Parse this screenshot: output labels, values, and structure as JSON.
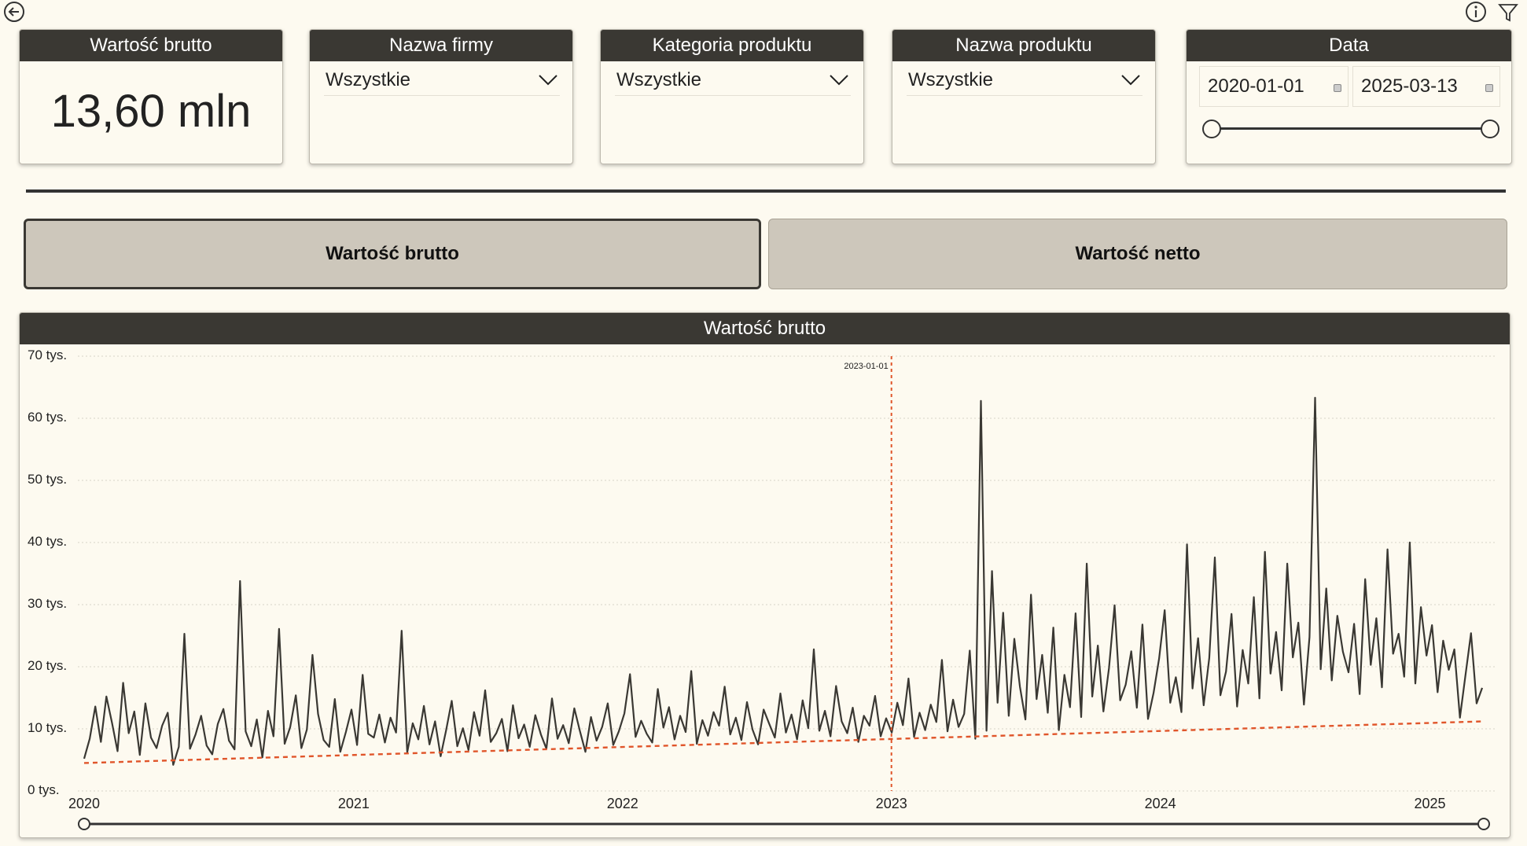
{
  "kpi": {
    "title": "Wartość brutto",
    "value": "13,60 mln"
  },
  "filters": [
    {
      "title": "Nazwa firmy",
      "value": "Wszystkie"
    },
    {
      "title": "Kategoria produktu",
      "value": "Wszystkie"
    },
    {
      "title": "Nazwa produktu",
      "value": "Wszystkie"
    }
  ],
  "date_filter": {
    "title": "Data",
    "start": "2020-01-01",
    "end": "2025-03-13"
  },
  "toggles": {
    "brutto_label": "Wartość brutto",
    "netto_label": "Wartość netto",
    "active": "brutto"
  },
  "icons": {
    "back": "back-arrow-icon",
    "info": "info-icon",
    "filter": "filter-icon"
  },
  "colors": {
    "header_bg": "#3a3833",
    "page_bg": "#fdfaf0",
    "line": "#3a3833",
    "trend": "#e0552a",
    "button_bg": "#cdc7bb"
  },
  "chart_data": {
    "type": "line",
    "title": "Wartość brutto",
    "x_ticks": [
      "2020",
      "2021",
      "2022",
      "2023",
      "2024",
      "2025"
    ],
    "y_ticks": [
      "0 tys.",
      "10 tys.",
      "20 tys.",
      "30 tys.",
      "40 tys.",
      "50 tys.",
      "60 tys.",
      "70 tys."
    ],
    "xlim": [
      "2020-01-01",
      "2025-03-13"
    ],
    "ylim": [
      0,
      70000
    ],
    "grid": true,
    "reference_line": {
      "label": "2023-01-01",
      "x": "2023-01-01",
      "color": "#e0552a"
    },
    "trend_line": {
      "start": 4500,
      "end": 11200,
      "color": "#e0552a"
    },
    "series": [
      {
        "values": [
          5200,
          8400,
          13600,
          7900,
          15200,
          11000,
          6400,
          17400,
          9300,
          12800,
          5800,
          14100,
          8600,
          6900,
          10500,
          12600,
          4200,
          7100,
          25300,
          6800,
          9100,
          12100,
          7300,
          5900,
          10800,
          13200,
          8100,
          6700,
          33800,
          9600,
          7200,
          11500,
          5400,
          12900,
          8800,
          26100,
          7600,
          10300,
          15400,
          6900,
          9900,
          21900,
          12400,
          8200,
          7100,
          14800,
          6300,
          9500,
          13100,
          7400,
          18700,
          9200,
          8600,
          12300,
          7800,
          11800,
          9400,
          25800,
          6200,
          10900,
          8300,
          13700,
          7500,
          11200,
          5600,
          9800,
          14500,
          7200,
          10100,
          6600,
          12700,
          8900,
          16200,
          7900,
          9300,
          11600,
          6400,
          13800,
          8500,
          10700,
          7100,
          12200,
          9100,
          6800,
          14900,
          8400,
          10600,
          7700,
          13300,
          9700,
          6300,
          11900,
          8100,
          10300,
          14100,
          7400,
          9600,
          12500,
          18800,
          8700,
          11300,
          9200,
          7800,
          16400,
          10200,
          13500,
          8300,
          12100,
          9500,
          19300,
          7600,
          11400,
          8900,
          12700,
          10500,
          16800,
          9100,
          11800,
          8200,
          14300,
          9900,
          7500,
          13100,
          10800,
          8600,
          15700,
          9400,
          12300,
          8300,
          14600,
          10100,
          22800,
          9700,
          12900,
          8800,
          16900,
          11200,
          9300,
          13400,
          7900,
          12100,
          10500,
          15300,
          8800,
          11700,
          9400,
          14200,
          10600,
          18100,
          8700,
          12600,
          9800,
          13900,
          11100,
          21100,
          9600,
          14700,
          10300,
          12400,
          22600,
          8400,
          62800,
          9700,
          35400,
          14200,
          28700,
          12100,
          24500,
          16800,
          11500,
          31600,
          14800,
          21900,
          12600,
          26300,
          9800,
          18700,
          13500,
          28600,
          11900,
          36600,
          15200,
          23400,
          12800,
          19800,
          29900,
          14600,
          17100,
          22500,
          13400,
          26800,
          11600,
          15800,
          21300,
          29100,
          14200,
          18300,
          12700,
          39700,
          16500,
          24600,
          13800,
          21400,
          37600,
          15400,
          19200,
          28500,
          13600,
          22700,
          17300,
          31200,
          14900,
          38500,
          18900,
          25600,
          16200,
          36600,
          21500,
          27100,
          13900,
          24800,
          63300,
          19600,
          32600,
          17800,
          28200,
          22400,
          19100,
          26900,
          15600,
          34100,
          20300,
          27800,
          16700,
          38900,
          22100,
          25300,
          18400,
          40000,
          17300,
          29600,
          21800,
          26700,
          15900,
          24200,
          19500,
          22800,
          11800,
          18600,
          25400,
          14100,
          16600
        ]
      }
    ]
  }
}
